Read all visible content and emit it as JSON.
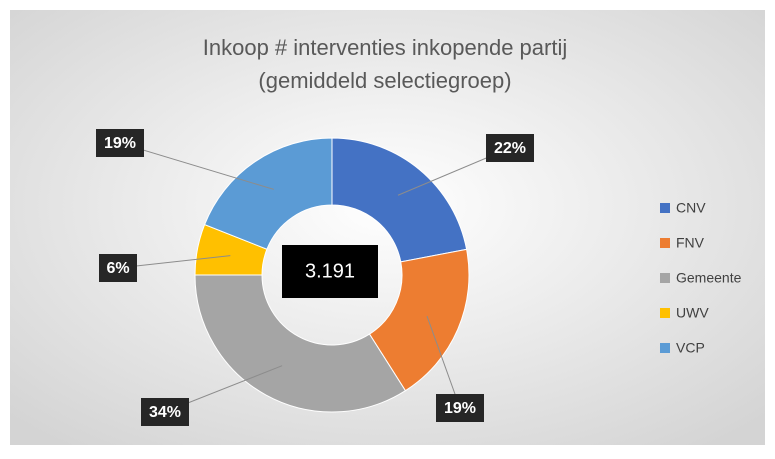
{
  "chart_data": {
    "type": "donut",
    "title": "Inkoop # interventies  inkopende partij",
    "subtitle": "(gemiddeld selectiegroep)",
    "categories": [
      "CNV",
      "FNV",
      "Gemeente",
      "UWV",
      "VCP"
    ],
    "values": [
      22,
      19,
      34,
      6,
      19
    ],
    "value_labels": [
      "22%",
      "19%",
      "34%",
      "6%",
      "19%"
    ],
    "colors": [
      "#4472c4",
      "#ed7d31",
      "#a5a5a5",
      "#ffc000",
      "#5b9bd5"
    ],
    "center_label": "3.191",
    "legend": "right"
  }
}
